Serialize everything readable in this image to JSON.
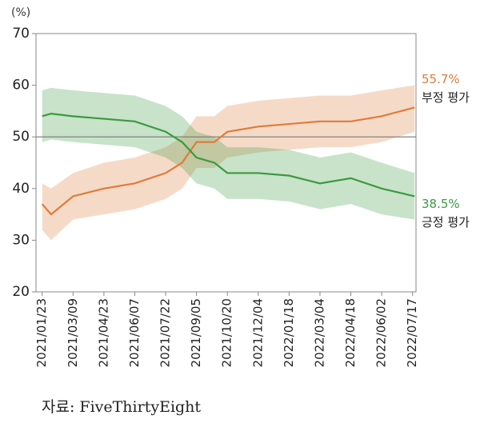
{
  "chart_data": {
    "type": "line",
    "y_label": "(%)",
    "source": "자료: FiveThirtyEight",
    "x": [
      "2021/01/23",
      "2021/02/05",
      "2021/03/09",
      "2021/04/23",
      "2021/06/07",
      "2021/07/22",
      "2021/08/15",
      "2021/09/05",
      "2021/10/01",
      "2021/10/20",
      "2021/12/04",
      "2022/01/18",
      "2022/03/04",
      "2022/04/18",
      "2022/06/02",
      "2022/07/20"
    ],
    "series": [
      {
        "name": "부정 평가",
        "color": "#e07b39",
        "values": [
          37,
          35,
          38.5,
          40,
          41,
          43,
          45,
          49,
          49,
          51,
          52,
          52.5,
          53,
          53,
          54,
          55.7
        ],
        "upper": [
          41,
          40,
          43,
          45,
          46,
          48,
          50,
          54,
          54,
          56,
          57,
          57.5,
          58,
          58,
          59,
          60
        ],
        "lower": [
          32,
          30,
          34,
          35,
          36,
          38,
          40,
          44,
          44,
          46,
          47,
          47.5,
          48,
          48,
          49,
          51
        ],
        "value_labels": [
          null,
          null,
          null,
          null,
          null,
          null,
          null,
          null,
          null,
          null,
          null,
          null,
          null,
          null,
          null,
          "55.7%"
        ]
      },
      {
        "name": "긍정 평가",
        "color": "#3a9a3f",
        "values": [
          54,
          54.5,
          54,
          53.5,
          53,
          51,
          49,
          46,
          45,
          43,
          43,
          42.5,
          41,
          42,
          40,
          38.5
        ],
        "upper": [
          59,
          59.5,
          59,
          58.5,
          58,
          56,
          54,
          51,
          50,
          48,
          48,
          47.5,
          46,
          47,
          45,
          43
        ],
        "lower": [
          49,
          49.5,
          49,
          48.5,
          48,
          46,
          44,
          41,
          40,
          38,
          38,
          37.5,
          36,
          37,
          35,
          34
        ],
        "value_labels": [
          null,
          null,
          null,
          null,
          null,
          null,
          null,
          null,
          null,
          null,
          null,
          null,
          null,
          null,
          null,
          "38.5%"
        ]
      }
    ],
    "xlim": [
      "2021/01/14",
      "2022/07/22"
    ],
    "xticks": [
      "2021/01/23",
      "2021/03/09",
      "2021/04/23",
      "2021/06/07",
      "2021/07/22",
      "2021/09/05",
      "2021/10/20",
      "2021/12/04",
      "2022/01/18",
      "2022/03/04",
      "2022/04/18",
      "2022/06/02",
      "2022/07/17"
    ],
    "ylim": [
      20,
      70
    ],
    "yticks": [
      20,
      30,
      40,
      50,
      60,
      70
    ],
    "reference_line": 50
  }
}
